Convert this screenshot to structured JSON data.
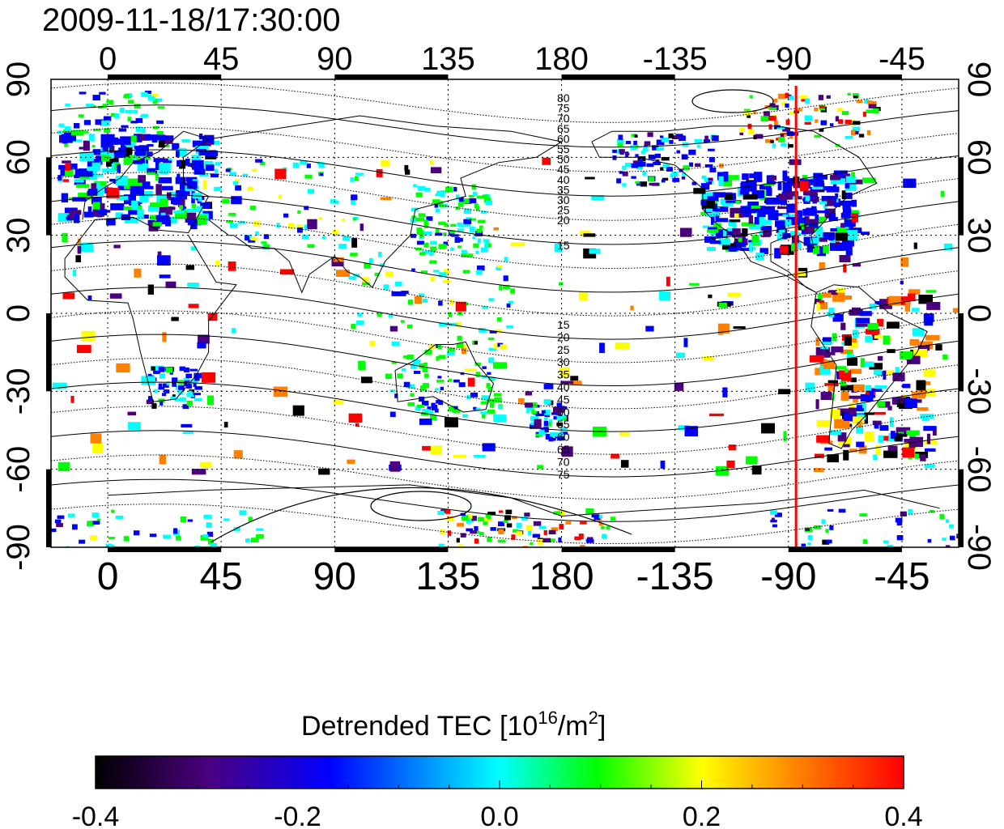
{
  "title": "2009-11-18/17:30:00",
  "map": {
    "top_axis_labels": [
      "0",
      "45",
      "90",
      "135",
      "180",
      "-135",
      "-90",
      "-45"
    ],
    "bottom_axis_labels": [
      "0",
      "45",
      "90",
      "135",
      "180",
      "-135",
      "-90",
      "-45"
    ],
    "left_axis_labels": [
      "90",
      "60",
      "30",
      "0",
      "-30",
      "-60",
      "-90"
    ],
    "right_axis_labels": [
      "90",
      "60",
      "30",
      "0",
      "-30",
      "-60",
      "-90"
    ],
    "meridian_marker_longitude": -87,
    "meridian_marker_color": "#ff0000",
    "contour_labels_north": [
      "80",
      "75",
      "70",
      "65",
      "60",
      "55",
      "50",
      "45",
      "40",
      "35",
      "30",
      "25",
      "20",
      "15"
    ],
    "contour_labels_south": [
      "15",
      "20",
      "25",
      "30",
      "35",
      "40",
      "45",
      "50",
      "55",
      "60",
      "65",
      "70",
      "75"
    ]
  },
  "colorbar": {
    "title_main": "Detrended TEC  [10",
    "title_sup1": "16",
    "title_mid": "/m",
    "title_sup2": "2",
    "title_end": "]",
    "min": -0.4,
    "max": 0.4,
    "tick_labels": [
      "-0.4",
      "-0.2",
      "0.0",
      "0.2",
      "0.4"
    ],
    "colormap_stops": [
      "#000000",
      "#4b0080",
      "#0000ff",
      "#00ffff",
      "#00ff00",
      "#ffff00",
      "#ff8000",
      "#ff0000"
    ]
  }
}
